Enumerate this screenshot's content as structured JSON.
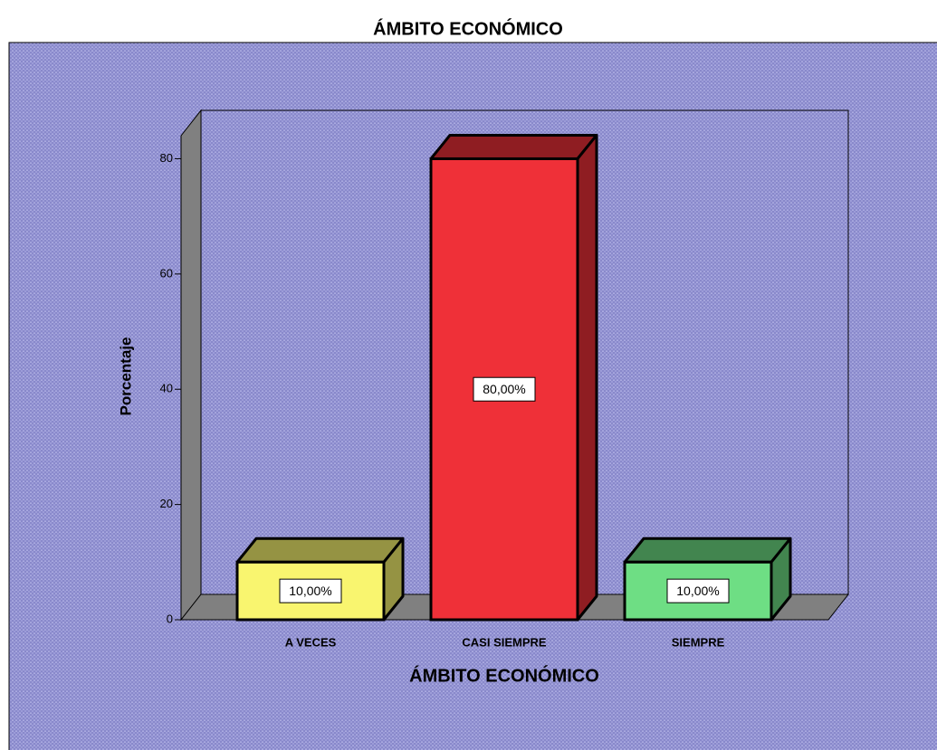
{
  "chart_data": {
    "type": "bar3d",
    "title": "ÁMBITO ECONÓMICO",
    "x_label": "ÁMBITO ECONÓMICO",
    "y_label": "Porcentaje",
    "categories": [
      "A VECES",
      "CASI SIEMPRE",
      "SIEMPRE"
    ],
    "values": [
      10,
      80,
      10
    ],
    "value_labels": [
      "10,00%",
      "80,00%",
      "10,00%"
    ],
    "colors": [
      "#f9f56f",
      "#ef3038",
      "#6ede84"
    ],
    "ylim": [
      0,
      84
    ],
    "yticks": [
      0,
      20,
      40,
      60,
      80
    ]
  }
}
